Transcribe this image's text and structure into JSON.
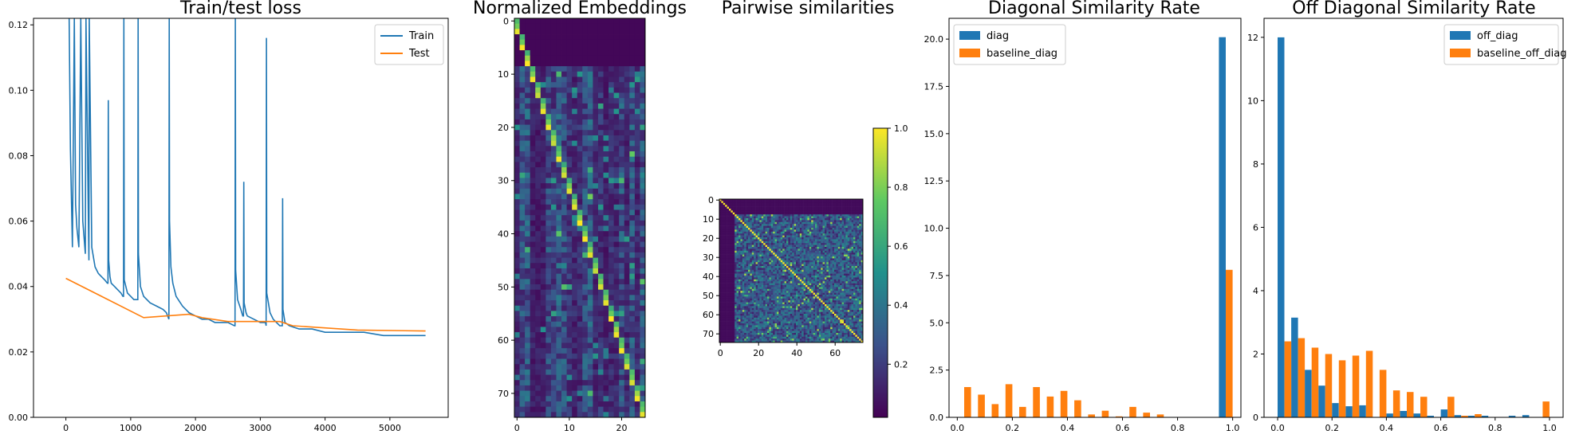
{
  "chart_data": [
    {
      "type": "line",
      "title": "Train/test loss",
      "xlim": [
        -500,
        5900
      ],
      "ylim": [
        0.0,
        0.122
      ],
      "xticks": [
        0,
        1000,
        2000,
        3000,
        4000,
        5000
      ],
      "yticks": [
        "0.00",
        "0.02",
        "0.04",
        "0.06",
        "0.08",
        "0.10",
        "0.12"
      ],
      "legend_position": "upper right",
      "series": [
        {
          "name": "Train",
          "color": "#1f77b4",
          "x": [
            50,
            70,
            100,
            130,
            150,
            170,
            200,
            230,
            260,
            280,
            300,
            310,
            350,
            355,
            360,
            400,
            450,
            500,
            550,
            600,
            640,
            650,
            655,
            660,
            680,
            700,
            750,
            800,
            850,
            880,
            890,
            895,
            900,
            950,
            1000,
            1050,
            1100,
            1110,
            1115,
            1120,
            1150,
            1200,
            1300,
            1400,
            1500,
            1550,
            1590,
            1595,
            1600,
            1620,
            1650,
            1700,
            1800,
            1900,
            2000,
            2100,
            2200,
            2300,
            2400,
            2500,
            2600,
            2610,
            2615,
            2620,
            2650,
            2700,
            2730,
            2740,
            2745,
            2750,
            2780,
            2800,
            2900,
            3000,
            3050,
            3080,
            3090,
            3095,
            3100,
            3150,
            3200,
            3250,
            3300,
            3330,
            3340,
            3345,
            3350,
            3380,
            3450,
            3600,
            3800,
            4000,
            4300,
            4600,
            4900,
            5200,
            5400,
            5550
          ],
          "y": [
            0.122,
            0.082,
            0.052,
            0.122,
            0.065,
            0.058,
            0.052,
            0.122,
            0.06,
            0.055,
            0.05,
            0.122,
            0.055,
            0.048,
            0.122,
            0.052,
            0.046,
            0.044,
            0.043,
            0.042,
            0.041,
            0.041,
            0.097,
            0.048,
            0.043,
            0.041,
            0.04,
            0.039,
            0.038,
            0.037,
            0.037,
            0.122,
            0.042,
            0.038,
            0.037,
            0.036,
            0.036,
            0.036,
            0.122,
            0.05,
            0.04,
            0.037,
            0.035,
            0.034,
            0.033,
            0.032,
            0.03,
            0.122,
            0.06,
            0.046,
            0.041,
            0.037,
            0.034,
            0.032,
            0.031,
            0.03,
            0.03,
            0.029,
            0.029,
            0.029,
            0.028,
            0.028,
            0.122,
            0.045,
            0.036,
            0.033,
            0.031,
            0.031,
            0.072,
            0.035,
            0.032,
            0.031,
            0.03,
            0.029,
            0.029,
            0.029,
            0.028,
            0.116,
            0.038,
            0.032,
            0.03,
            0.029,
            0.028,
            0.028,
            0.028,
            0.067,
            0.033,
            0.029,
            0.028,
            0.027,
            0.027,
            0.026,
            0.026,
            0.026,
            0.025,
            0.025,
            0.025,
            0.025
          ]
        },
        {
          "name": "Test",
          "color": "#ff7f0e",
          "x": [
            0,
            1200,
            1900,
            2100,
            2500,
            3300,
            3500,
            4500,
            5550
          ],
          "y": [
            0.0425,
            0.0305,
            0.0315,
            0.0305,
            0.0293,
            0.0293,
            0.028,
            0.0267,
            0.0264
          ]
        }
      ]
    },
    {
      "type": "heatmap",
      "title": "Normalized Embeddings",
      "xticks": [
        0,
        10,
        20
      ],
      "yticks": [
        0,
        10,
        20,
        30,
        40,
        50,
        60,
        70
      ],
      "n_rows": 75,
      "n_cols": 25,
      "colormap": "viridis"
    },
    {
      "type": "heatmap",
      "title": "Pairwise similarities",
      "xticks": [
        0,
        20,
        40,
        60
      ],
      "yticks": [
        0,
        10,
        20,
        30,
        40,
        50,
        60,
        70
      ],
      "size": 75,
      "colormap": "viridis",
      "colorbar_ticks": [
        "0.2",
        "0.4",
        "0.6",
        "0.8",
        "1.0"
      ]
    },
    {
      "type": "bar",
      "title": "Diagonal Similarity Rate",
      "xlim": [
        -0.03,
        1.03
      ],
      "ylim": [
        0,
        21.1
      ],
      "xticks": [
        "0.0",
        "0.2",
        "0.4",
        "0.6",
        "0.8",
        "1.0"
      ],
      "yticks": [
        "0.0",
        "2.5",
        "5.0",
        "7.5",
        "10.0",
        "12.5",
        "15.0",
        "17.5",
        "20.0"
      ],
      "legend_position": "upper left",
      "bin_centers": [
        0.025,
        0.075,
        0.125,
        0.175,
        0.225,
        0.275,
        0.325,
        0.375,
        0.425,
        0.475,
        0.525,
        0.575,
        0.625,
        0.675,
        0.725,
        0.775,
        0.825,
        0.875,
        0.925,
        0.975
      ],
      "series": [
        {
          "name": "diag",
          "color": "#1f77b4",
          "values": [
            0,
            0,
            0,
            0,
            0,
            0,
            0,
            0,
            0,
            0,
            0,
            0,
            0,
            0,
            0,
            0,
            0,
            0,
            0,
            20.1
          ]
        },
        {
          "name": "baseline_diag",
          "color": "#ff7f0e",
          "values": [
            1.6,
            1.2,
            0.7,
            1.75,
            0.55,
            1.6,
            1.1,
            1.4,
            0.9,
            0.15,
            0.35,
            0.05,
            0.55,
            0.25,
            0.15,
            0,
            0,
            0,
            0,
            7.8
          ]
        }
      ]
    },
    {
      "type": "bar",
      "title": "Off Diagonal Similarity Rate",
      "xlim": [
        -0.05,
        1.05
      ],
      "ylim": [
        0,
        12.6
      ],
      "xticks": [
        "0.0",
        "0.2",
        "0.4",
        "0.6",
        "0.8",
        "1.0"
      ],
      "yticks": [
        "0",
        "2",
        "4",
        "6",
        "8",
        "10",
        "12"
      ],
      "legend_position": "upper right",
      "bin_centers": [
        0.025,
        0.075,
        0.125,
        0.175,
        0.225,
        0.275,
        0.325,
        0.375,
        0.425,
        0.475,
        0.525,
        0.575,
        0.625,
        0.675,
        0.725,
        0.775,
        0.825,
        0.875,
        0.925,
        0.975
      ],
      "series": [
        {
          "name": "off_diag",
          "color": "#1f77b4",
          "values": [
            12.0,
            3.15,
            1.5,
            1.0,
            0.45,
            0.35,
            0.38,
            0.0,
            0.12,
            0.2,
            0.12,
            0.05,
            0.25,
            0.07,
            0.05,
            0.05,
            0.0,
            0.05,
            0.07,
            0.0
          ]
        },
        {
          "name": "baseline_off_diag",
          "color": "#ff7f0e",
          "values": [
            2.4,
            2.5,
            2.2,
            2.0,
            1.8,
            1.95,
            2.1,
            1.5,
            0.85,
            0.8,
            0.65,
            0.0,
            0.65,
            0.05,
            0.1,
            0.0,
            0.0,
            0.0,
            0.0,
            0.5
          ]
        }
      ]
    }
  ]
}
